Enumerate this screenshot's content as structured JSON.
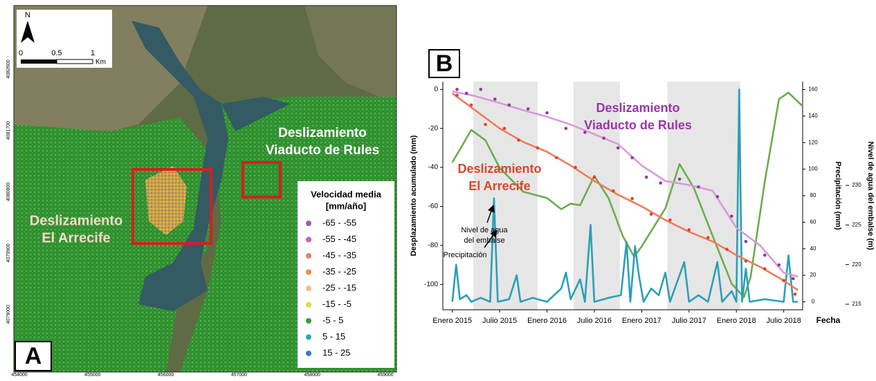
{
  "map": {
    "north": "N",
    "scale_labels": [
      0,
      0.5,
      1
    ],
    "scale_unit": "Km",
    "xticks": [
      454000,
      455000,
      456000,
      457000,
      458000,
      459000
    ],
    "yticks": [
      4082600,
      4081700,
      4080800,
      4079900,
      4079000
    ],
    "landslides": [
      {
        "lines": [
          "Deslizamiento",
          "Viaducto de Rules"
        ],
        "color": "#ffffff"
      },
      {
        "lines": [
          "Deslizamiento",
          "El Arrecife"
        ],
        "color": "#f6d8cc"
      }
    ],
    "legend_title": [
      "Velocidad media",
      "[mm/año]"
    ],
    "legend": [
      {
        "label": "-65 - -55",
        "color": "#9b59b6"
      },
      {
        "label": "-55 - -45",
        "color": "#d25bb3"
      },
      {
        "label": "-45 - -35",
        "color": "#e57f74"
      },
      {
        "label": "-35 - -25",
        "color": "#e8943a"
      },
      {
        "label": "-25 - -15",
        "color": "#f3c08a"
      },
      {
        "label": "-15 - -5",
        "color": "#e2dc45"
      },
      {
        "label": "-5 - 5",
        "color": "#3f9a3a"
      },
      {
        "label": "5 - 15",
        "color": "#2aa8b8"
      },
      {
        "label": "15 - 25",
        "color": "#3f78c0"
      }
    ],
    "panel_label": "A"
  },
  "chart_data": {
    "type": "line",
    "panel_label": "B",
    "xlabel": "Fecha",
    "ylabel": "Desplazamiento acumulado (mm)",
    "y2label": "Precipitación (mm)",
    "y3label": "Nivel de agua del embalse (m)",
    "xlim": [
      2014.9,
      2018.7
    ],
    "xticks": [
      {
        "value": 2015.0,
        "label": "Enero 2015"
      },
      {
        "value": 2015.5,
        "label": "Julio 2015"
      },
      {
        "value": 2016.0,
        "label": "Enero 2016"
      },
      {
        "value": 2016.5,
        "label": "Julio 2016"
      },
      {
        "value": 2017.0,
        "label": "Enero 2017"
      },
      {
        "value": 2017.5,
        "label": "Julio 2017"
      },
      {
        "value": 2018.0,
        "label": "Enero 2018"
      },
      {
        "value": 2018.5,
        "label": "Julio 2018"
      }
    ],
    "ylim": [
      -113,
      4
    ],
    "yticks": [
      0,
      -20,
      -40,
      -60,
      -80,
      -100
    ],
    "y2lim": [
      -6,
      166
    ],
    "y2ticks": [
      0,
      20,
      40,
      60,
      80,
      100,
      120,
      140,
      160
    ],
    "y3lim": [
      214.3,
      243.1
    ],
    "y3ticks": [
      215,
      220,
      225,
      230
    ],
    "bands": [
      [
        2015.22,
        2015.9
      ],
      [
        2016.28,
        2016.77
      ],
      [
        2017.27,
        2018.04
      ]
    ],
    "band_color": "#e6e6e6",
    "annotations": [
      [
        "Precipitación"
      ],
      [
        "Nivel de agua",
        "del embalse"
      ]
    ],
    "series": [
      {
        "mode": "markers",
        "color": "#8e3a98",
        "x": [
          2015.05,
          2015.15,
          2015.3,
          2015.45,
          2015.6,
          2015.8,
          2016.0,
          2016.2,
          2016.4,
          2016.6,
          2016.75,
          2016.9,
          2017.05,
          2017.2,
          2017.4,
          2017.6,
          2017.8,
          2017.95,
          2018.1,
          2018.3,
          2018.45,
          2018.6
        ],
        "values": [
          0,
          -2,
          0,
          -5,
          -8,
          -10,
          -12,
          -20,
          -22,
          -25,
          -30,
          -35,
          -45,
          -48,
          -46,
          -50,
          -55,
          -65,
          -78,
          -85,
          -90,
          -97
        ]
      },
      {
        "mode": "markers",
        "color": "#d9462b",
        "x": [
          2015.05,
          2015.2,
          2015.35,
          2015.55,
          2015.7,
          2015.9,
          2016.1,
          2016.3,
          2016.5,
          2016.7,
          2016.9,
          2017.1,
          2017.3,
          2017.5,
          2017.7,
          2017.9,
          2018.1,
          2018.3,
          2018.5,
          2018.62
        ],
        "values": [
          -3,
          -8,
          -18,
          -20,
          -26,
          -30,
          -35,
          -40,
          -45,
          -52,
          -56,
          -64,
          -67,
          -72,
          -76,
          -82,
          -88,
          -92,
          -98,
          -105
        ]
      },
      {
        "name": "Deslizamiento Viaducto de Rules",
        "mode": "line",
        "color": "#d79ad8",
        "label_color": "#9b35a8",
        "x": [
          2015.0,
          2015.25,
          2015.5,
          2015.75,
          2016.0,
          2016.25,
          2016.5,
          2016.75,
          2017.0,
          2017.25,
          2017.5,
          2017.75,
          2018.0,
          2018.25,
          2018.5,
          2018.65
        ],
        "values": [
          -1,
          -3.5,
          -7,
          -10.7,
          -14,
          -18,
          -23,
          -28,
          -39,
          -47,
          -49,
          -52,
          -71,
          -80,
          -94,
          -96
        ]
      },
      {
        "name": "Deslizamiento El Arrecife",
        "mode": "line",
        "color": "#ef7b5c",
        "label_color": "#d9462b",
        "x": [
          2015.0,
          2015.25,
          2015.5,
          2015.75,
          2016.0,
          2016.25,
          2016.5,
          2016.75,
          2017.0,
          2017.25,
          2017.5,
          2017.75,
          2018.0,
          2018.25,
          2018.5,
          2018.65
        ],
        "values": [
          -2,
          -11,
          -20,
          -27,
          -32,
          -39,
          -47,
          -54,
          -60,
          -67,
          -73,
          -78,
          -85,
          -91,
          -98,
          -103
        ]
      },
      {
        "mode": "line",
        "axis": "y3",
        "color": "#6aad4c",
        "x": [
          2015.0,
          2015.2,
          2015.35,
          2015.5,
          2015.75,
          2016.0,
          2016.15,
          2016.25,
          2016.35,
          2016.5,
          2016.65,
          2016.8,
          2016.92,
          2017.0,
          2017.25,
          2017.4,
          2017.55,
          2017.75,
          2017.95,
          2018.08,
          2018.15,
          2018.3,
          2018.45,
          2018.55,
          2018.7
        ],
        "values": [
          232.9,
          237,
          235.7,
          232.2,
          229.2,
          228.4,
          227,
          227.7,
          227.5,
          231.2,
          228.4,
          223.6,
          221,
          222.3,
          227.1,
          232.7,
          229.7,
          223.6,
          217.6,
          215.9,
          218.4,
          230.5,
          240.9,
          241.7,
          240
        ]
      },
      {
        "mode": "line",
        "axis": "y2",
        "color": "#2a9fb7",
        "x": [
          2015.0,
          2015.04,
          2015.08,
          2015.15,
          2015.2,
          2015.3,
          2015.4,
          2015.44,
          2015.48,
          2015.6,
          2015.68,
          2015.72,
          2015.85,
          2016.0,
          2016.15,
          2016.2,
          2016.25,
          2016.35,
          2016.4,
          2016.46,
          2016.5,
          2016.65,
          2016.78,
          2016.84,
          2016.88,
          2016.93,
          2016.97,
          2017.02,
          2017.1,
          2017.18,
          2017.25,
          2017.3,
          2017.45,
          2017.5,
          2017.6,
          2017.7,
          2017.8,
          2017.85,
          2017.95,
          2018.0,
          2018.03,
          2018.06,
          2018.1,
          2018.14,
          2018.3,
          2018.5,
          2018.55,
          2018.6,
          2018.65
        ],
        "values": [
          0,
          28,
          2,
          5,
          0,
          3,
          0,
          78,
          0,
          2,
          20,
          0,
          3,
          0,
          10,
          22,
          2,
          17,
          0,
          58,
          0,
          3,
          5,
          45,
          0,
          42,
          20,
          0,
          10,
          5,
          22,
          0,
          30,
          0,
          5,
          0,
          30,
          0,
          8,
          0,
          160,
          0,
          25,
          0,
          2,
          0,
          35,
          0,
          0
        ]
      }
    ]
  }
}
